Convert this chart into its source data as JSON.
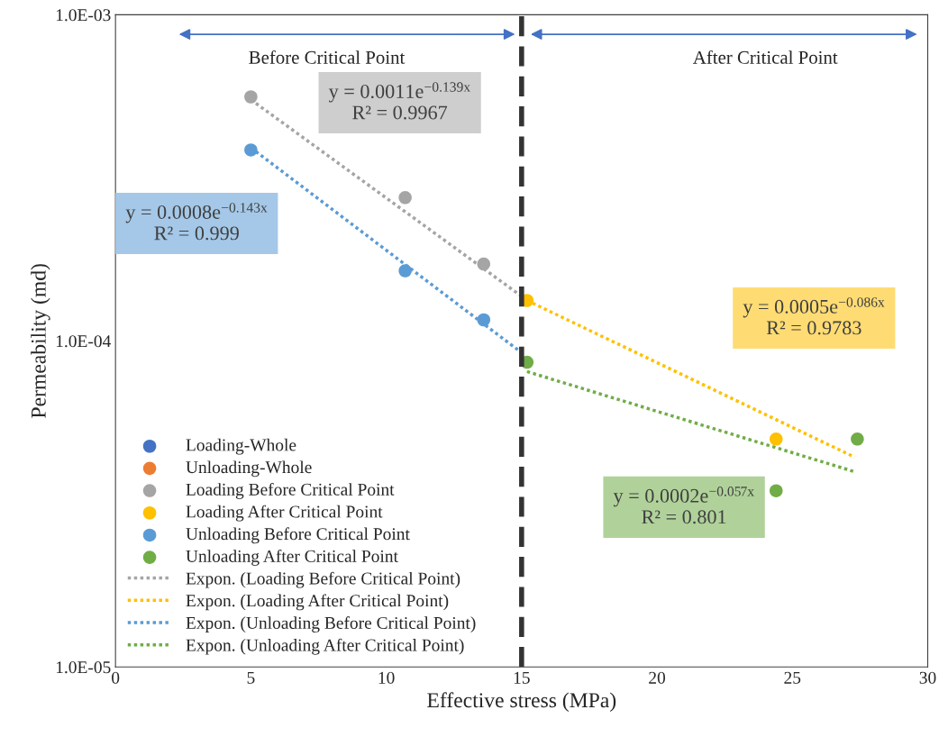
{
  "chart_data": {
    "type": "scatter",
    "xlabel": "Effective stress (MPa)",
    "ylabel": "Permeability (md)",
    "log": "y",
    "xlim": [
      0,
      30
    ],
    "xticks": [
      0,
      5,
      10,
      15,
      20,
      25,
      30
    ],
    "ylim": [
      1e-05,
      0.001
    ],
    "yticks": [
      {
        "value": 1e-05,
        "label": "1.0E-05"
      },
      {
        "value": 0.0001,
        "label": "1.0E-04"
      },
      {
        "value": 0.001,
        "label": "1.0E-03"
      }
    ],
    "grid": false,
    "legend": "bottom left",
    "marker": "circle",
    "series": [
      {
        "name": "Loading-Whole",
        "color": "#4472c4"
      },
      {
        "name": "Unloading-Whole",
        "color": "#ed7d31"
      },
      {
        "name": "Loading Before Critical Point",
        "color": "#a5a5a5",
        "x": [
          5,
          10.7,
          13.6
        ],
        "values": [
          0.00056,
          0.000275,
          0.000172
        ]
      },
      {
        "name": "Loading After Critical Point",
        "color": "#ffc000",
        "x": [
          15.2,
          24.4
        ],
        "values": [
          0.000133,
          5e-05
        ]
      },
      {
        "name": "Unloading Before Critical Point",
        "color": "#5b9bd5",
        "x": [
          5,
          10.7,
          13.6
        ],
        "values": [
          0.000385,
          0.000164,
          0.000116
        ]
      },
      {
        "name": "Unloading After Critical Point",
        "color": "#70ad47",
        "x": [
          15.2,
          24.4,
          27.4
        ],
        "values": [
          8.6e-05,
          3.47e-05,
          5e-05
        ]
      },
      {
        "name": "Expon. (Loading Before Critical Point)",
        "type": "line",
        "marker": "none",
        "line_style": "dotted",
        "color": "#a5a5a5",
        "x": [
          5,
          15
        ],
        "values": [
          0.000549,
          0.000137
        ]
      },
      {
        "name": "Expon. (Loading After Critical Point)",
        "type": "line",
        "marker": "none",
        "line_style": "dotted",
        "color": "#ffc000",
        "x": [
          15.2,
          27.3
        ],
        "values": [
          0.000133,
          4.4e-05
        ]
      },
      {
        "name": "Expon. (Unloading Before Critical Point)",
        "type": "line",
        "marker": "none",
        "line_style": "dotted",
        "color": "#5b9bd5",
        "x": [
          5,
          15
        ],
        "values": [
          0.000391,
          9.2e-05
        ]
      },
      {
        "name": "Expon. (Unloading After Critical Point)",
        "type": "line",
        "marker": "none",
        "line_style": "dotted",
        "color": "#70ad47",
        "x": [
          15.2,
          27.3
        ],
        "values": [
          8.05e-05,
          3.97e-05
        ]
      }
    ],
    "ref_lines": [
      {
        "axis": "x",
        "value": 15,
        "color": "#333333",
        "line_style": "dashed"
      }
    ],
    "annotations": [
      "y = 0.0011e$^{−0.139x}$\nR² = 0.9967",
      "y = 0.0005e$^{−0.086x}$\nR² = 0.9783",
      "y = 0.0008e$^{−0.143x}$\nR² = 0.999",
      "y = 0.0002e$^{−0.057x}$\nR² = 0.801",
      "Before Critical Point",
      "After Critical Point"
    ]
  }
}
